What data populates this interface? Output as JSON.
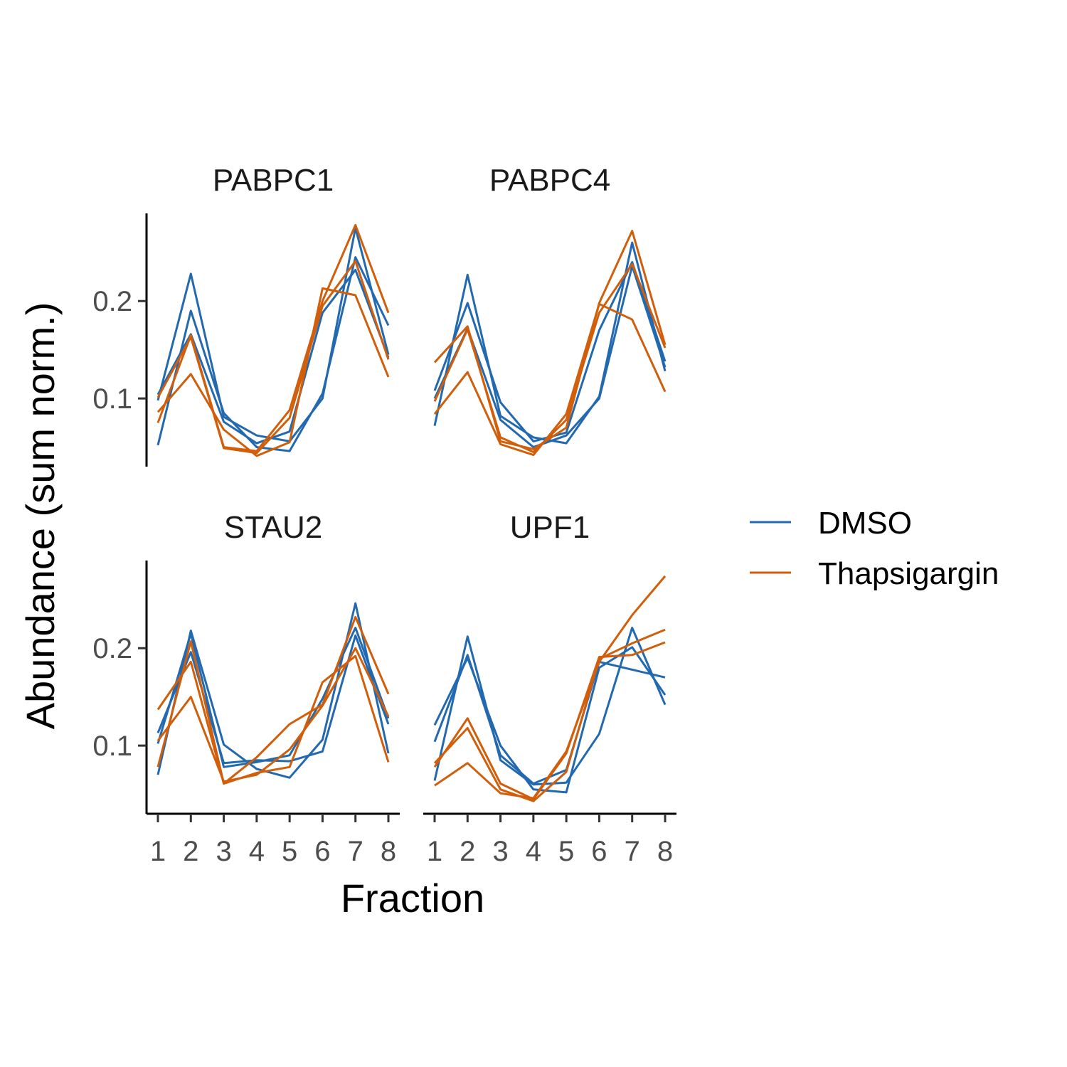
{
  "chart_data": {
    "type": "line",
    "xlabel": "Fraction",
    "ylabel": "Abundance (sum norm.)",
    "x": [
      1,
      2,
      3,
      4,
      5,
      6,
      7,
      8
    ],
    "x_tick_labels": [
      "1",
      "2",
      "3",
      "4",
      "5",
      "6",
      "7",
      "8"
    ],
    "y_ticks": [
      0.1,
      0.2
    ],
    "y_tick_labels": [
      "0.1",
      "0.2"
    ],
    "ylim": [
      0.03,
      0.29
    ],
    "grid": false,
    "legend_position": "right",
    "legend": [
      {
        "name": "DMSO",
        "color": "#2369b0"
      },
      {
        "name": "Thapsigargin",
        "color": "#d15e0a"
      }
    ],
    "facets": [
      {
        "title": "PABPC1",
        "series": [
          {
            "name": "DMSO",
            "values": [
              0.098,
              0.228,
              0.081,
              0.062,
              0.056,
              0.1,
              0.275,
              0.145
            ]
          },
          {
            "name": "DMSO",
            "values": [
              0.052,
              0.19,
              0.085,
              0.05,
              0.046,
              0.105,
              0.245,
              0.175
            ]
          },
          {
            "name": "DMSO",
            "values": [
              0.104,
              0.166,
              0.076,
              0.054,
              0.066,
              0.188,
              0.232,
              0.142
            ]
          },
          {
            "name": "Thapsigargin",
            "values": [
              0.075,
              0.165,
              0.05,
              0.046,
              0.088,
              0.2,
              0.278,
              0.188
            ]
          },
          {
            "name": "Thapsigargin",
            "values": [
              0.086,
              0.125,
              0.068,
              0.041,
              0.055,
              0.213,
              0.206,
              0.122
            ]
          },
          {
            "name": "Thapsigargin",
            "values": [
              0.101,
              0.163,
              0.049,
              0.044,
              0.08,
              0.195,
              0.241,
              0.14
            ]
          }
        ]
      },
      {
        "title": "PABPC4",
        "series": [
          {
            "name": "DMSO",
            "values": [
              0.072,
              0.227,
              0.082,
              0.06,
              0.054,
              0.102,
              0.26,
              0.128
            ]
          },
          {
            "name": "DMSO",
            "values": [
              0.108,
              0.198,
              0.096,
              0.056,
              0.065,
              0.17,
              0.24,
              0.138
            ]
          },
          {
            "name": "DMSO",
            "values": [
              0.1,
              0.172,
              0.078,
              0.05,
              0.062,
              0.1,
              0.236,
              0.132
            ]
          },
          {
            "name": "Thapsigargin",
            "values": [
              0.137,
              0.174,
              0.056,
              0.048,
              0.07,
              0.198,
              0.272,
              0.155
            ]
          },
          {
            "name": "Thapsigargin",
            "values": [
              0.084,
              0.127,
              0.053,
              0.042,
              0.084,
              0.197,
              0.181,
              0.107
            ]
          },
          {
            "name": "Thapsigargin",
            "values": [
              0.097,
              0.171,
              0.06,
              0.045,
              0.078,
              0.188,
              0.238,
              0.152
            ]
          }
        ]
      },
      {
        "title": "STAU2",
        "series": [
          {
            "name": "DMSO",
            "values": [
              0.07,
              0.218,
              0.101,
              0.076,
              0.067,
              0.106,
              0.246,
              0.092
            ]
          },
          {
            "name": "DMSO",
            "values": [
              0.113,
              0.196,
              0.082,
              0.085,
              0.084,
              0.094,
              0.213,
              0.122
            ]
          },
          {
            "name": "DMSO",
            "values": [
              0.102,
              0.215,
              0.078,
              0.083,
              0.09,
              0.148,
              0.221,
              0.128
            ]
          },
          {
            "name": "Thapsigargin",
            "values": [
              0.137,
              0.186,
              0.061,
              0.088,
              0.122,
              0.142,
              0.232,
              0.153
            ]
          },
          {
            "name": "Thapsigargin",
            "values": [
              0.078,
              0.207,
              0.061,
              0.072,
              0.078,
              0.165,
              0.192,
              0.083
            ]
          },
          {
            "name": "Thapsigargin",
            "values": [
              0.105,
              0.15,
              0.063,
              0.07,
              0.096,
              0.141,
              0.2,
              0.13
            ]
          }
        ]
      },
      {
        "title": "UPF1",
        "series": [
          {
            "name": "DMSO",
            "values": [
              0.064,
              0.212,
              0.085,
              0.06,
              0.062,
              0.112,
              0.221,
              0.142
            ]
          },
          {
            "name": "DMSO",
            "values": [
              0.121,
              0.19,
              0.1,
              0.055,
              0.052,
              0.18,
              0.201,
              0.152
            ]
          },
          {
            "name": "DMSO",
            "values": [
              0.104,
              0.193,
              0.09,
              0.061,
              0.075,
              0.186,
              0.178,
              0.17
            ]
          },
          {
            "name": "Thapsigargin",
            "values": [
              0.059,
              0.082,
              0.051,
              0.046,
              0.094,
              0.186,
              0.234,
              0.274
            ]
          },
          {
            "name": "Thapsigargin",
            "values": [
              0.078,
              0.128,
              0.061,
              0.045,
              0.092,
              0.191,
              0.193,
              0.206
            ]
          },
          {
            "name": "Thapsigargin",
            "values": [
              0.082,
              0.118,
              0.055,
              0.043,
              0.073,
              0.189,
              0.205,
              0.219
            ]
          }
        ]
      }
    ]
  }
}
